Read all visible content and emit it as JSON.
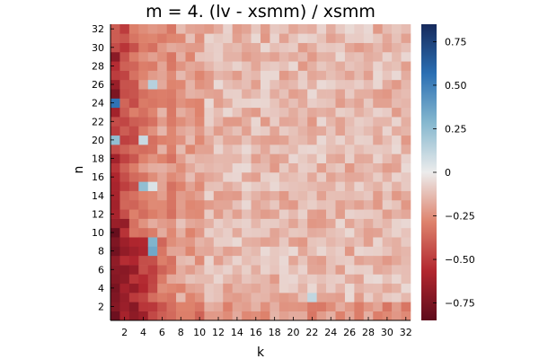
{
  "chart_data": {
    "type": "heatmap",
    "title": "m = 4. (lv - xsmm) / xsmm",
    "xlabel": "k",
    "ylabel": "n",
    "x_range": [
      1,
      32
    ],
    "y_range": [
      1,
      32
    ],
    "x_ticks": [
      "2",
      "4",
      "6",
      "8",
      "10",
      "12",
      "14",
      "16",
      "18",
      "20",
      "22",
      "24",
      "26",
      "28",
      "30",
      "32"
    ],
    "y_ticks": [
      "2",
      "4",
      "6",
      "8",
      "10",
      "12",
      "14",
      "16",
      "18",
      "20",
      "22",
      "24",
      "26",
      "28",
      "30",
      "32"
    ],
    "colorbar": {
      "range": [
        -0.85,
        0.85
      ],
      "ticks": [
        0.75,
        0.5,
        0.25,
        0,
        -0.25,
        -0.5,
        -0.75
      ],
      "tick_labels": [
        "0.75",
        "0.50",
        "0.25",
        "0",
        "−0.25",
        "−0.50",
        "−0.75"
      ],
      "colors": [
        "#5e0b1b",
        "#b2272f",
        "#de836d",
        "#ececec",
        "#86b8cf",
        "#2b6fb3",
        "#162a5c"
      ]
    },
    "value_summary": {
      "k1_column": {
        "1": -0.8,
        "2": -0.72,
        "3": -0.74,
        "4": -0.76,
        "5": -0.72,
        "6": -0.7,
        "7": -0.68,
        "8": -0.78,
        "9": -0.74,
        "10": -0.82,
        "11": -0.65,
        "12": -0.6,
        "13": -0.62,
        "14": -0.6,
        "15": -0.6,
        "16": -0.58,
        "17": -0.52,
        "18": -0.62,
        "19": -0.45,
        "20": 0.25,
        "21": -0.5,
        "22": -0.45,
        "23": -0.62,
        "24": 0.55,
        "25": -0.75,
        "26": -0.65,
        "27": -0.5,
        "28": -0.55,
        "29": -0.7,
        "30": -0.45,
        "31": -0.4,
        "32": -0.4
      },
      "notable_cells": [
        {
          "k": 4,
          "n": 15,
          "value": 0.25
        },
        {
          "k": 5,
          "n": 9,
          "value": 0.3
        },
        {
          "k": 5,
          "n": 8,
          "value": 0.35
        },
        {
          "k": 4,
          "n": 20,
          "value": 0.1
        },
        {
          "k": 5,
          "n": 26,
          "value": 0.15
        },
        {
          "k": 22,
          "n": 3,
          "value": 0.12
        },
        {
          "k": 5,
          "n": 15,
          "value": 0.05
        }
      ]
    }
  }
}
